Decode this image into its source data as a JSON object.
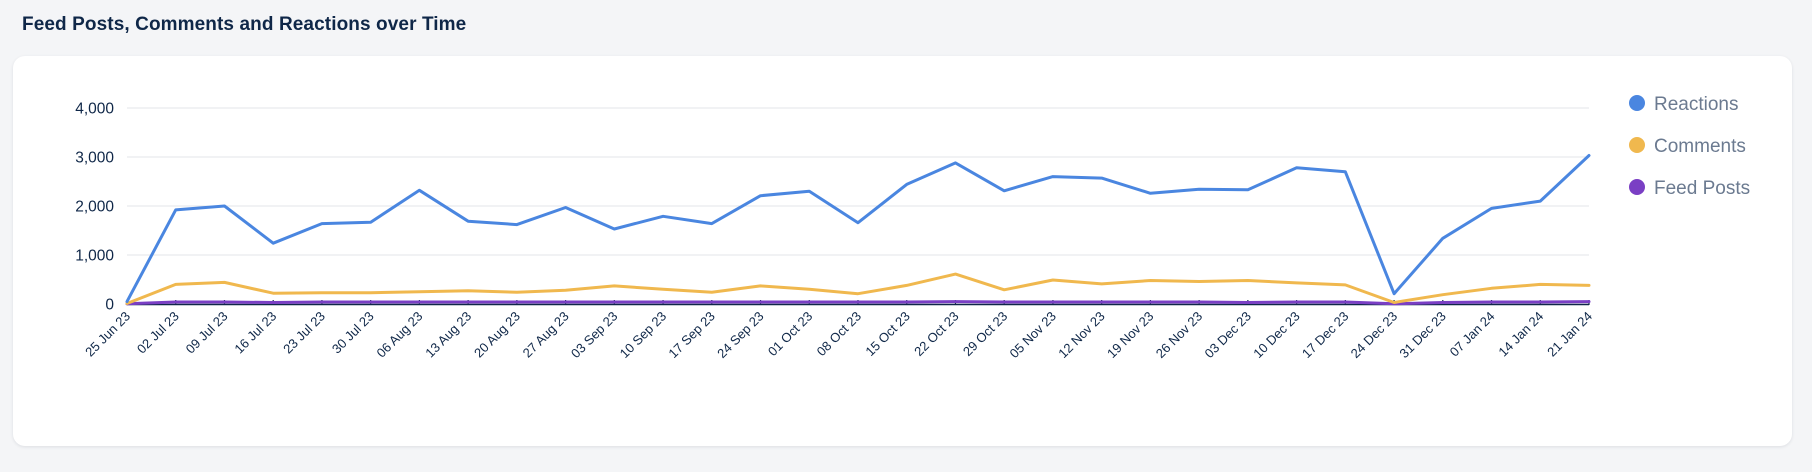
{
  "page": {
    "title": "Feed Posts, Comments and Reactions over Time"
  },
  "chart_data": {
    "type": "line",
    "title": "Feed Posts, Comments and Reactions over Time",
    "xlabel": "",
    "ylabel": "",
    "ylim": [
      0,
      4000
    ],
    "yticks": [
      "0",
      "1,000",
      "2,000",
      "3,000",
      "4,000"
    ],
    "grid": true,
    "legend_position": "right",
    "categories": [
      "25 Jun 23",
      "02 Jul 23",
      "09 Jul 23",
      "16 Jul 23",
      "23 Jul 23",
      "30 Jul 23",
      "06 Aug 23",
      "13 Aug 23",
      "20 Aug 23",
      "27 Aug 23",
      "03 Sep 23",
      "10 Sep 23",
      "17 Sep 23",
      "24 Sep 23",
      "01 Oct 23",
      "08 Oct 23",
      "15 Oct 23",
      "22 Oct 23",
      "29 Oct 23",
      "05 Nov 23",
      "12 Nov 23",
      "19 Nov 23",
      "26 Nov 23",
      "03 Dec 23",
      "10 Dec 23",
      "17 Dec 23",
      "24 Dec 23",
      "31 Dec 23",
      "07 Jan 24",
      "14 Jan 24",
      "21 Jan 24"
    ],
    "series": [
      {
        "name": "Reactions",
        "color": "#4a86e0",
        "values": [
          50,
          1920,
          2000,
          1240,
          1640,
          1670,
          2320,
          1690,
          1620,
          1970,
          1530,
          1790,
          1640,
          2210,
          2300,
          1660,
          2440,
          2880,
          2310,
          2600,
          2570,
          2260,
          2340,
          2330,
          2780,
          2700,
          210,
          1340,
          1950,
          2100,
          3030
        ]
      },
      {
        "name": "Comments",
        "color": "#f0b84e",
        "values": [
          10,
          400,
          440,
          220,
          230,
          230,
          250,
          270,
          240,
          280,
          370,
          300,
          240,
          370,
          300,
          210,
          380,
          610,
          290,
          490,
          410,
          480,
          460,
          480,
          430,
          390,
          30,
          190,
          320,
          400,
          380
        ]
      },
      {
        "name": "Feed Posts",
        "color": "#7a3fc4",
        "values": [
          5,
          40,
          40,
          30,
          40,
          40,
          40,
          40,
          40,
          40,
          40,
          40,
          40,
          40,
          40,
          40,
          40,
          50,
          40,
          40,
          40,
          40,
          40,
          30,
          40,
          40,
          5,
          30,
          40,
          40,
          50
        ]
      }
    ]
  }
}
